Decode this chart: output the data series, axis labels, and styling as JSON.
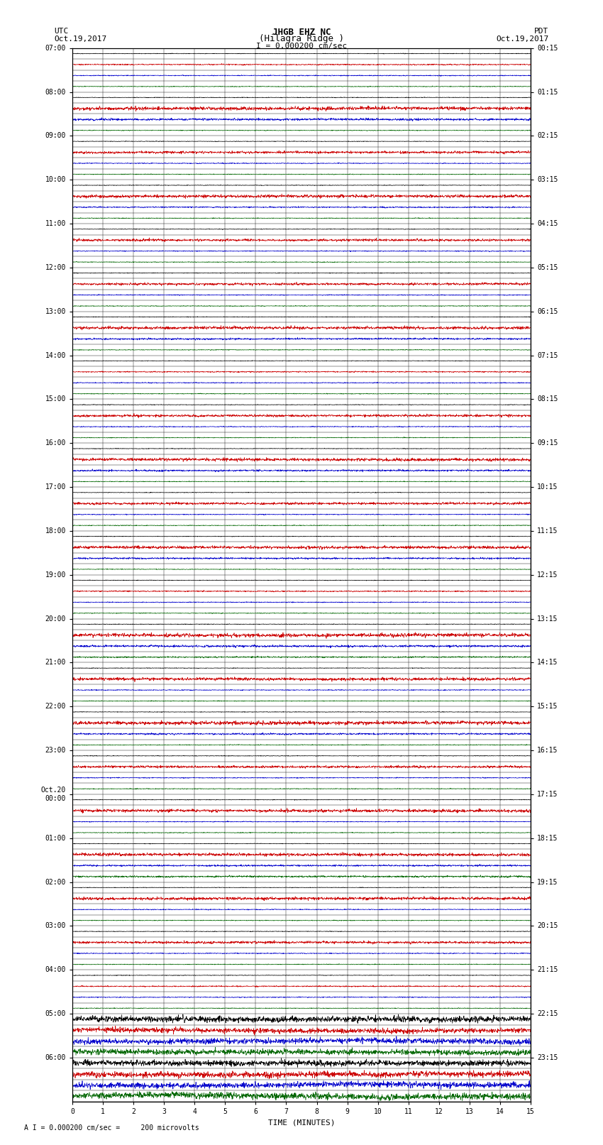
{
  "title_line1": "JHGB EHZ NC",
  "title_line2": "(Hilagra Ridge )",
  "scale_label": "I = 0.000200 cm/sec",
  "left_label_top": "UTC",
  "left_label_date": "Oct.19,2017",
  "right_label_top": "PDT",
  "right_label_date": "Oct.19,2017",
  "bottom_label": "TIME (MINUTES)",
  "footer_label": "A I = 0.000200 cm/sec =     200 microvolts",
  "utc_times_labeled": [
    "07:00",
    "08:00",
    "09:00",
    "10:00",
    "11:00",
    "12:00",
    "13:00",
    "14:00",
    "15:00",
    "16:00",
    "17:00",
    "18:00",
    "19:00",
    "20:00",
    "21:00",
    "22:00",
    "23:00",
    "Oct.20\n00:00",
    "01:00",
    "02:00",
    "03:00",
    "04:00",
    "05:00",
    "06:00"
  ],
  "pdt_times_labeled": [
    "00:15",
    "01:15",
    "02:15",
    "03:15",
    "04:15",
    "05:15",
    "06:15",
    "07:15",
    "08:15",
    "09:15",
    "10:15",
    "11:15",
    "12:15",
    "13:15",
    "14:15",
    "15:15",
    "16:15",
    "17:15",
    "18:15",
    "19:15",
    "20:15",
    "21:15",
    "22:15",
    "23:15"
  ],
  "num_rows": 96,
  "bg_color": "#ffffff",
  "grid_color": "#000000",
  "trace_colors": [
    "#000000",
    "#cc0000",
    "#0000cc",
    "#006600"
  ],
  "line_width": 0.5,
  "font_family": "monospace",
  "x_tick_labels": [
    "0",
    "1",
    "2",
    "3",
    "4",
    "5",
    "6",
    "7",
    "8",
    "9",
    "10",
    "11",
    "12",
    "13",
    "14",
    "15"
  ]
}
